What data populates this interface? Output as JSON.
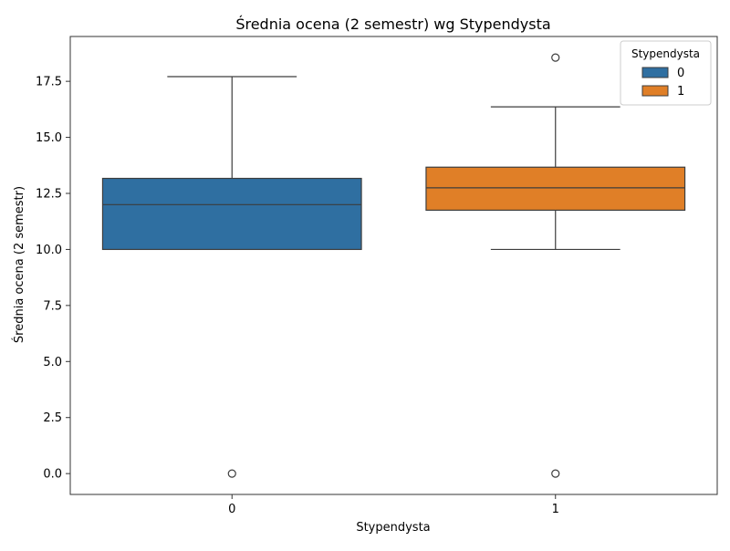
{
  "chart_data": {
    "type": "box",
    "title": "Średnia ocena (2 semestr) wg Stypendysta",
    "xlabel": "Stypendysta",
    "ylabel": "Średnia ocena (2 semestr)",
    "categories": [
      "0",
      "1"
    ],
    "ylim": [
      -0.93,
      19.5
    ],
    "yticks": [
      0.0,
      2.5,
      5.0,
      7.5,
      10.0,
      12.5,
      15.0,
      17.5
    ],
    "ytick_labels": [
      "0.0",
      "2.5",
      "5.0",
      "7.5",
      "10.0",
      "12.5",
      "15.0",
      "17.5"
    ],
    "grid": false,
    "legend": {
      "title": "Stypendysta",
      "position": "top-right",
      "entries": [
        {
          "label": "0",
          "color": "#2f6fa1"
        },
        {
          "label": "1",
          "color": "#e07f27"
        }
      ]
    },
    "series": [
      {
        "category": "0",
        "color": "#2f6fa1",
        "whisker_low": 10.0,
        "q1": 10.0,
        "median": 12.0,
        "q3": 13.17,
        "whisker_high": 17.71,
        "outliers": [
          0.0
        ]
      },
      {
        "category": "1",
        "color": "#e07f27",
        "whisker_low": 10.0,
        "q1": 11.75,
        "median": 12.75,
        "q3": 13.67,
        "whisker_high": 16.36,
        "outliers": [
          18.56,
          0.0
        ]
      }
    ]
  }
}
